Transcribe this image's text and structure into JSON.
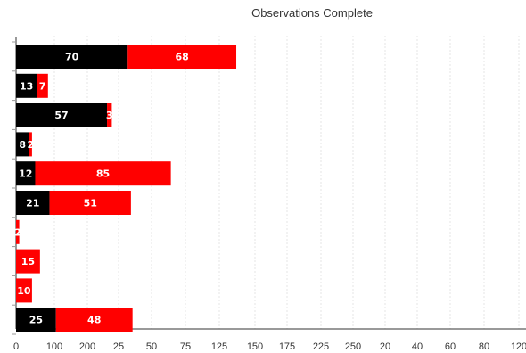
{
  "chart_data": {
    "type": "bar",
    "orientation": "horizontal",
    "stacked": true,
    "title": "Observations Complete",
    "xlabel": "",
    "ylabel": "",
    "x_tick_labels": [
      "0",
      "100",
      "200",
      "25",
      "50",
      "75",
      "125",
      "150",
      "175",
      "225",
      "250",
      "20",
      "40",
      "60",
      "80",
      "120"
    ],
    "grid": true,
    "legend": "none",
    "series": [
      {
        "color": "#000000",
        "values": [
          70,
          13,
          57,
          8,
          12,
          21,
          0,
          0,
          0,
          25
        ]
      },
      {
        "color": "#ff0000",
        "values": [
          68,
          7,
          3,
          2,
          85,
          51,
          2,
          15,
          10,
          48
        ]
      }
    ],
    "label_text": [
      [
        "70",
        "68"
      ],
      [
        "13",
        "7"
      ],
      [
        "57",
        "3"
      ],
      [
        "8",
        "2"
      ],
      [
        "12",
        "85"
      ],
      [
        "21",
        "51"
      ],
      [
        "",
        "2"
      ],
      [
        "",
        "15"
      ],
      [
        "",
        "10"
      ],
      [
        "25",
        "48"
      ]
    ]
  }
}
